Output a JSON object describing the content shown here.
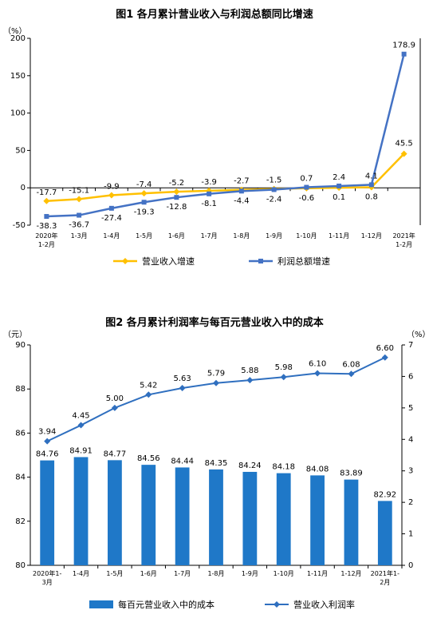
{
  "chart_data": [
    {
      "type": "line",
      "title": "图1  各月累计营业收入与利润总额同比增速",
      "ylabel": "（%）",
      "ylim": [
        -50,
        200
      ],
      "yticks": [
        "200",
        "150",
        "100",
        "50",
        "0",
        "-50"
      ],
      "categories": [
        [
          "2020年",
          "1-2月"
        ],
        [
          "1-3月"
        ],
        [
          "1-4月"
        ],
        [
          "1-5月"
        ],
        [
          "1-6月"
        ],
        [
          "1-7月"
        ],
        [
          "1-8月"
        ],
        [
          "1-9月"
        ],
        [
          "1-10月"
        ],
        [
          "1-11月"
        ],
        [
          "1-12月"
        ],
        [
          "2021年",
          "1-2月"
        ]
      ],
      "series": [
        {
          "name": "营业收入增速",
          "color": "#FFC000",
          "values": [
            -17.7,
            -15.1,
            -9.9,
            -7.4,
            -5.2,
            -3.9,
            -2.7,
            -1.5,
            -0.6,
            0.1,
            0.8,
            45.5
          ],
          "labels": [
            "-17.7",
            "-15.1",
            "-9.9",
            "-7.4",
            "-5.2",
            "-3.9",
            "-2.7",
            "-1.5",
            "-0.6",
            "0.1",
            "0.8",
            "45.5"
          ]
        },
        {
          "name": "利润总额增速",
          "color": "#4472C4",
          "values": [
            -38.3,
            -36.7,
            -27.4,
            -19.3,
            -12.8,
            -8.1,
            -4.4,
            -2.4,
            0.7,
            2.4,
            4.1,
            178.9
          ],
          "labels": [
            "-38.3",
            "-36.7",
            "-27.4",
            "-19.3",
            "-12.8",
            "-8.1",
            "-4.4",
            "-2.4",
            "0.7",
            "2.4",
            "4.1",
            "178.9"
          ]
        }
      ],
      "legend": "bottom",
      "grid": false
    },
    {
      "type": "bar",
      "title": "图2  各月累计利润率与每百元营业收入中的成本",
      "ylabel_left": "（元）",
      "ylabel_right": "（%）",
      "ylim_left": [
        80,
        90
      ],
      "ylim_right": [
        0,
        7
      ],
      "yticks_left": [
        "90",
        "88",
        "86",
        "84",
        "82",
        "80"
      ],
      "yticks_right": [
        "7",
        "6",
        "5",
        "4",
        "3",
        "2",
        "1",
        "0"
      ],
      "categories": [
        [
          "2020年1-",
          "3月"
        ],
        [
          "1-4月"
        ],
        [
          "1-5月"
        ],
        [
          "1-6月"
        ],
        [
          "1-7月"
        ],
        [
          "1-8月"
        ],
        [
          "1-9月"
        ],
        [
          "1-10月"
        ],
        [
          "1-11月"
        ],
        [
          "1-12月"
        ],
        [
          "2021年1-",
          "2月"
        ]
      ],
      "series": [
        {
          "name": "每百元营业收入中的成本",
          "kind": "bar",
          "axis": "left",
          "color": "#1F78C8",
          "values": [
            84.76,
            84.91,
            84.77,
            84.56,
            84.44,
            84.35,
            84.24,
            84.18,
            84.08,
            83.89,
            82.92
          ],
          "labels": [
            "84.76",
            "84.91",
            "84.77",
            "84.56",
            "84.44",
            "84.35",
            "84.24",
            "84.18",
            "84.08",
            "83.89",
            "82.92"
          ]
        },
        {
          "name": "营业收入利润率",
          "kind": "line",
          "axis": "right",
          "color": "#2F6FBF",
          "values": [
            3.94,
            4.45,
            5.0,
            5.42,
            5.63,
            5.79,
            5.88,
            5.98,
            6.1,
            6.08,
            6.6
          ],
          "labels": [
            "3.94",
            "4.45",
            "5.00",
            "5.42",
            "5.63",
            "5.79",
            "5.88",
            "5.98",
            "6.10",
            "6.08",
            "6.60"
          ]
        }
      ],
      "legend": "bottom",
      "grid": false
    }
  ]
}
